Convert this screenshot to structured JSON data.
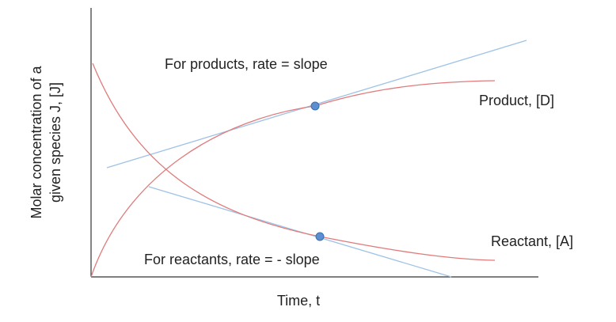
{
  "diagram": {
    "axis_labels": {
      "x": "Time, t",
      "y_line1": "Molar concentration of a",
      "y_line2": "given species J, [J]"
    },
    "annotations": {
      "products_rate": "For products, rate = slope",
      "reactants_rate": "For reactants, rate = - slope"
    },
    "curve_labels": {
      "product": "Product, [D]",
      "reactant": "Reactant, [A]"
    },
    "colors": {
      "curve": "#e07a7a",
      "tangent": "#9ec2e6",
      "point": "#5b8fcf",
      "point_stroke": "#3d6fae",
      "axis": "#333333"
    }
  }
}
